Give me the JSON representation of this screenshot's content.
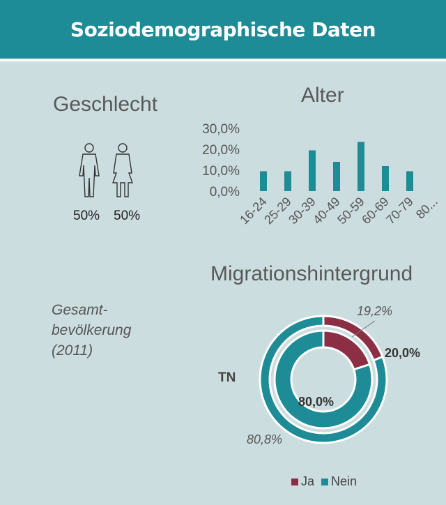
{
  "header": {
    "title": "Soziodemographische Daten"
  },
  "gender": {
    "title": "Geschlecht",
    "male_pct": "50%",
    "female_pct": "50%"
  },
  "age": {
    "title": "Alter"
  },
  "migration": {
    "title": "Migrationshintergrund",
    "outer_label": "Gesamt-bevölkerung (2011)",
    "outer_label_lines": [
      "Gesamt-",
      "bevölkerung",
      "(2011)"
    ],
    "inner_label": "TN",
    "outer_ja_label": "19,2%",
    "outer_nein_label": "80,8%",
    "inner_ja_label": "20,0%",
    "inner_nein_label": "80,0%",
    "legend": [
      {
        "name": "Ja",
        "color": "#8c2f45"
      },
      {
        "name": "Nein",
        "color": "#1e8c96"
      }
    ]
  },
  "chart_data": [
    {
      "type": "pie",
      "title": "Geschlecht",
      "categories": [
        "male-icon",
        "female-icon"
      ],
      "values": [
        50,
        50
      ]
    },
    {
      "type": "bar",
      "title": "Alter",
      "categories": [
        "16-24",
        "25-29",
        "30-39",
        "40-49",
        "50-59",
        "60-69",
        "70-79",
        "80..."
      ],
      "values": [
        9.5,
        9.5,
        19.5,
        14,
        23.5,
        12,
        9.5,
        0
      ],
      "ylim": [
        0,
        30
      ],
      "yticks": [
        "0,0%",
        "10,0%",
        "20,0%",
        "30,0%"
      ],
      "color": "#1e8c96"
    },
    {
      "type": "pie",
      "title": "Migrationshintergrund",
      "categories": [
        "Ja",
        "Nein"
      ],
      "series": [
        {
          "name": "Gesamt-bevölkerung (2011)",
          "values": [
            19.2,
            80.8
          ]
        },
        {
          "name": "TN",
          "values": [
            20.0,
            80.0
          ]
        }
      ],
      "colors": [
        "#8c2f45",
        "#1e8c96"
      ]
    }
  ]
}
